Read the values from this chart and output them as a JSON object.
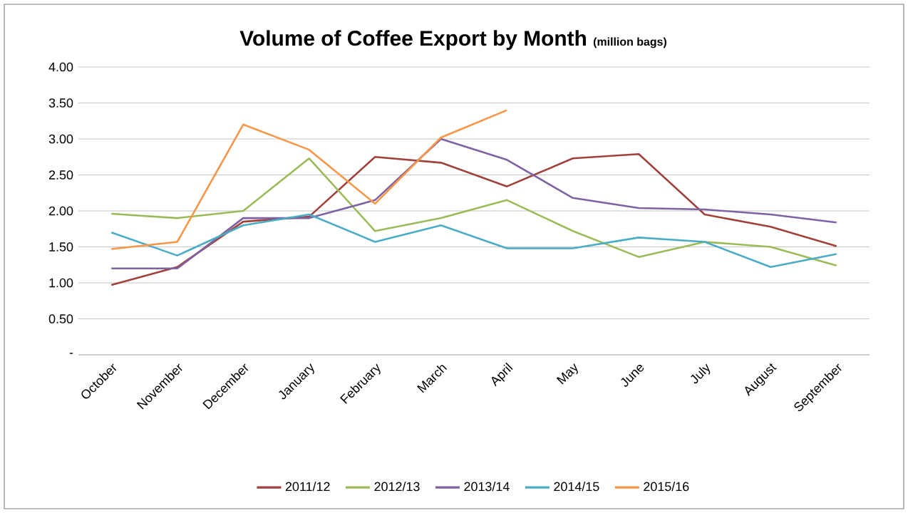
{
  "chart_data": {
    "type": "line",
    "title": "Volume of Coffee Export by Month",
    "subtitle": "(million bags)",
    "categories": [
      "October",
      "November",
      "December",
      "January",
      "February",
      "March",
      "April",
      "May",
      "June",
      "July",
      "August",
      "September"
    ],
    "series": [
      {
        "name": "2011/12",
        "color": "#a0413c",
        "values": [
          0.97,
          1.22,
          1.85,
          1.92,
          2.75,
          2.67,
          2.34,
          2.73,
          2.79,
          1.95,
          1.78,
          1.51
        ]
      },
      {
        "name": "2012/13",
        "color": "#9bbb59",
        "values": [
          1.96,
          1.9,
          2.0,
          2.73,
          1.72,
          1.9,
          2.15,
          1.72,
          1.36,
          1.57,
          1.5,
          1.24
        ]
      },
      {
        "name": "2013/14",
        "color": "#7e62a1",
        "values": [
          1.2,
          1.2,
          1.9,
          1.9,
          2.15,
          3.0,
          2.71,
          2.18,
          2.04,
          2.02,
          1.95,
          1.84
        ]
      },
      {
        "name": "2014/15",
        "color": "#4bacc6",
        "values": [
          1.7,
          1.38,
          1.8,
          1.95,
          1.57,
          1.8,
          1.48,
          1.48,
          1.63,
          1.57,
          1.22,
          1.4
        ]
      },
      {
        "name": "2015/16",
        "color": "#f79646",
        "values": [
          1.47,
          1.57,
          3.2,
          2.85,
          2.1,
          3.02,
          3.4,
          null,
          null,
          null,
          null,
          null
        ]
      }
    ],
    "ylim": [
      0,
      4
    ],
    "yticks": [
      {
        "value": 0,
        "label": "-"
      },
      {
        "value": 0.5,
        "label": "0.50"
      },
      {
        "value": 1,
        "label": "1.00"
      },
      {
        "value": 1.5,
        "label": "1.50"
      },
      {
        "value": 2,
        "label": "2.00"
      },
      {
        "value": 2.5,
        "label": "2.50"
      },
      {
        "value": 3,
        "label": "3.00"
      },
      {
        "value": 3.5,
        "label": "3.50"
      },
      {
        "value": 4,
        "label": "4.00"
      }
    ],
    "grid": "y",
    "legend": "bottom",
    "marker": "none",
    "line_style": "solid"
  }
}
